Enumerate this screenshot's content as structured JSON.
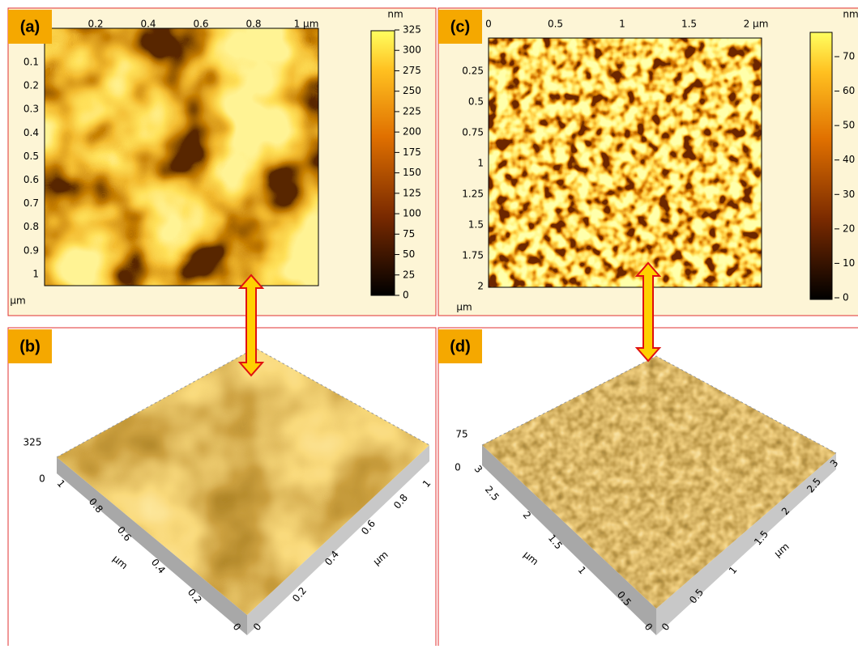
{
  "panels": [
    {
      "label": "(a)",
      "x_ticks": [
        "0.2",
        "0.4",
        "0.6",
        "0.8",
        "1 µm"
      ],
      "y_ticks": [
        "0.1",
        "0.2",
        "0.3",
        "0.4",
        "0.5",
        "0.6",
        "0.7",
        "0.8",
        "0.9",
        "1"
      ],
      "axis_unit": "µm",
      "colorbar_unit": "nm",
      "colorbar_ticks": [
        "325",
        "300",
        "275",
        "250",
        "225",
        "200",
        "175",
        "150",
        "125",
        "100",
        "75",
        "50",
        "25",
        "0"
      ]
    },
    {
      "label": "(b)",
      "z_ticks": [
        "325",
        "0"
      ],
      "left_axis_ticks": [
        "1",
        "0.8",
        "0.6",
        "0.4",
        "0.2",
        "0"
      ],
      "left_axis_unit": "µm",
      "right_axis_ticks": [
        "0",
        "0.2",
        "0.4",
        "0.6",
        "0.8",
        "1"
      ],
      "right_axis_unit": "µm"
    },
    {
      "label": "(c)",
      "x_ticks": [
        "0",
        "0.5",
        "1",
        "1.5",
        "2 µm"
      ],
      "y_ticks": [
        "0.25",
        "0.5",
        "0.75",
        "1",
        "1.25",
        "1.5",
        "1.75",
        "2"
      ],
      "axis_unit": "µm",
      "colorbar_unit": "nm",
      "colorbar_ticks": [
        "70",
        "60",
        "50",
        "40",
        "30",
        "20",
        "10",
        "0"
      ]
    },
    {
      "label": "(d)",
      "z_ticks": [
        "75",
        "0"
      ],
      "left_axis_ticks": [
        "3",
        "2.5",
        "2",
        "1.5",
        "1",
        "0.5",
        "0"
      ],
      "left_axis_unit": "µm",
      "right_axis_ticks": [
        "0",
        "0.5",
        "1",
        "1.5",
        "2",
        "2.5",
        "3"
      ],
      "right_axis_unit": "µm"
    }
  ]
}
